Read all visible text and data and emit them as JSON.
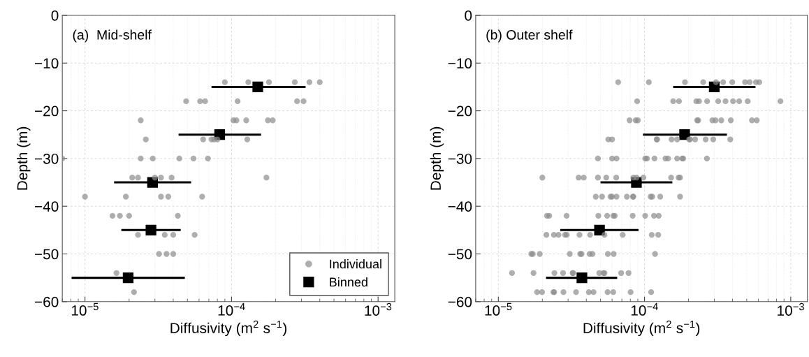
{
  "chart_data": [
    {
      "type": "scatter",
      "xlabel": "Diffusivity (m$^{2}$ s$^{−1}$)",
      "ylabel": "Depth (m)",
      "annotations": [
        "(a)  Mid-shelf"
      ],
      "log": "x",
      "grid": true,
      "legend": "bottom right",
      "marker": "circle",
      "xlim": [
        7e-06,
        0.0013
      ],
      "ylim": [
        -60,
        0
      ],
      "xticks": [
        {
          "value": 1e-05,
          "label": "10$^{−5}$"
        },
        {
          "value": 0.0001,
          "label": "10$^{−4}$"
        },
        {
          "value": 0.001,
          "label": "10$^{−3}$"
        }
      ],
      "yticks": [
        {
          "value": -60,
          "label": "−60"
        },
        {
          "value": -50,
          "label": "−50"
        },
        {
          "value": -40,
          "label": "−40"
        },
        {
          "value": -30,
          "label": "−30"
        },
        {
          "value": -20,
          "label": "−20"
        },
        {
          "value": -10,
          "label": "−10"
        },
        0
      ],
      "series": [
        {
          "name": "Individual",
          "color": "#8c8c8c",
          "x": [
            9e-05,
            0.00013,
            0.00018,
            0.00027,
            0.00034,
            0.0004,
            4.9e-05,
            6.1e-05,
            6.6e-05,
            0.00011,
            0.00028,
            0.00031,
            2.4e-05,
            0.000103,
            0.000108,
            0.000126,
            0.000177,
            0.000191,
            2.6e-05,
            6.4e-05,
            7.3e-05,
            7.6e-05,
            8e-05,
            0.000128,
            7e-06,
            2.4e-05,
            2.9e-05,
            4.4e-05,
            5.5e-05,
            6.9e-05,
            2.1e-05,
            2.3e-05,
            3e-05,
            3.3e-05,
            3.9e-05,
            0.000173,
            1e-05,
            1.9e-05,
            3.3e-05,
            3.7e-05,
            6.3e-05,
            1.54e-05,
            1.73e-05,
            2e-05,
            4.3e-05,
            2.3e-05,
            3.5e-05,
            4e-05,
            5.6e-05,
            3.2e-05,
            3.6e-05,
            4e-05,
            1.64e-05,
            2.16e-05
          ],
          "values": [
            -14,
            -14,
            -14,
            -14,
            -14,
            -14,
            -18,
            -18,
            -18,
            -18,
            -18,
            -18,
            -22,
            -22,
            -22,
            -22,
            -22,
            -22,
            -26,
            -26,
            -26,
            -26,
            -26,
            -26,
            -30,
            -30,
            -30,
            -30,
            -30,
            -30,
            -34,
            -34,
            -34,
            -34,
            -34,
            -34,
            -38,
            -38,
            -38,
            -38,
            -38,
            -42,
            -42,
            -42,
            -42,
            -46,
            -46,
            -46,
            -46,
            -50,
            -50,
            -50,
            -54,
            -58
          ]
        },
        {
          "name": "Binned",
          "color": "#000000",
          "marker": "square",
          "x": [
            0.000151,
            8.3e-05,
            2.89e-05,
            2.82e-05,
            1.97e-05
          ],
          "values": [
            -15,
            -25,
            -35,
            -45,
            -55
          ],
          "xerrors": [
            [
              7.3e-05,
              0.00032
            ],
            [
              4.35e-05,
              0.000159
            ],
            [
              1.58e-05,
              5.3e-05
            ],
            [
              1.77e-05,
              4.5e-05
            ],
            [
              8.1e-06,
              4.8e-05
            ]
          ]
        }
      ]
    },
    {
      "type": "scatter",
      "xlabel": "Diffusivity (m$^{2}$ s$^{−1}$)",
      "ylabel": "Depth (m)",
      "annotations": [
        "(b) Outer shelf"
      ],
      "log": "x",
      "grid": true,
      "marker": "circle",
      "xlim": [
        7e-06,
        0.0013
      ],
      "ylim": [
        -60,
        0
      ],
      "xticks": [
        {
          "value": 1e-05,
          "label": "10$^{−5}$"
        },
        {
          "value": 0.0001,
          "label": "10$^{−4}$"
        },
        {
          "value": 0.001,
          "label": "10$^{−3}$"
        }
      ],
      "yticks": [
        {
          "value": -60,
          "label": "−60"
        },
        {
          "value": -50,
          "label": "−50"
        },
        {
          "value": -40,
          "label": "−40"
        },
        {
          "value": -30,
          "label": "−30"
        },
        {
          "value": -20,
          "label": "−20"
        },
        {
          "value": -10,
          "label": "−10"
        },
        0
      ],
      "series": [
        {
          "color": "#8c8c8c",
          "x": [
            6.6e-05,
            0.000107,
            0.000189,
            0.000252,
            0.000308,
            0.000345,
            0.000398,
            0.000487,
            0.000524,
            0.000578,
            0.00061,
            8.9e-05,
            0.000157,
            0.000172,
            0.000226,
            0.000236,
            0.000268,
            0.000319,
            0.000358,
            0.000403,
            0.000444,
            0.000508,
            0.00085,
            7.9e-05,
            8.7e-05,
            9e-05,
            0.000229,
            0.000233,
            0.000291,
            0.000306,
            0.000335,
            0.000389,
            0.000543,
            0.000586,
            5.65e-05,
            6e-05,
            0.000121,
            0.000122,
            0.000153,
            0.000167,
            0.000202,
            0.000205,
            0.000222,
            0.000262,
            0.000295,
            0.000386,
            4.8e-05,
            6e-05,
            6.43e-05,
            0.000101,
            0.000104,
            0.000117,
            0.000139,
            0.000145,
            0.000167,
            0.000181,
            0.000184,
            0.000267,
            2e-05,
            3.54e-05,
            3.84e-05,
            4.8e-05,
            5.47e-05,
            6.4e-05,
            8.39e-05,
            8.83e-05,
            9.82e-05,
            0.000152,
            0.000171,
            0.000175,
            4.64e-05,
            5.12e-05,
            5.85e-05,
            6e-05,
            6.43e-05,
            7.57e-05,
            8.33e-05,
            8.39e-05,
            0.00011,
            0.000113,
            0.000128,
            0.000175,
            2.15e-05,
            2.23e-05,
            2.93e-05,
            4.83e-05,
            5.55e-05,
            6.11e-05,
            6.26e-05,
            8.3e-05,
            0.000101,
            0.000116,
            0.000125,
            2.13e-05,
            2.4e-05,
            2.58e-05,
            2.86e-05,
            2.94e-05,
            3.59e-05,
            4.24e-05,
            5.32e-05,
            7.09e-05,
            0.000112,
            0.000124,
            1.68e-05,
            1.72e-05,
            1.92e-05,
            3.08e-05,
            3.63e-05,
            3.71e-05,
            4.21e-05,
            4.4e-05,
            5.61e-05,
            6.15e-05,
            0.000118,
            1.24e-05,
            1.74e-05,
            2.42e-05,
            2.77e-05,
            3.22e-05,
            3.25e-05,
            4.9e-05,
            5.24e-05,
            5.32e-05,
            6.92e-05,
            7.77e-05,
            1.84e-05,
            1.99e-05,
            2.38e-05,
            2.41e-05,
            2.79e-05,
            3.4e-05,
            4.16e-05,
            4.48e-05,
            5.59e-05,
            6.11e-05,
            8.03e-05,
            0.000111
          ],
          "values": [
            -14,
            -14,
            -14,
            -14,
            -14,
            -14,
            -14,
            -14,
            -14,
            -14,
            -14,
            -18,
            -18,
            -18,
            -18,
            -18,
            -18,
            -18,
            -18,
            -18,
            -18,
            -18,
            -18,
            -22,
            -22,
            -22,
            -22,
            -22,
            -22,
            -22,
            -22,
            -22,
            -22,
            -22,
            -26,
            -26,
            -26,
            -26,
            -26,
            -26,
            -26,
            -26,
            -26,
            -26,
            -26,
            -26,
            -30,
            -30,
            -30,
            -30,
            -30,
            -30,
            -30,
            -30,
            -30,
            -30,
            -30,
            -30,
            -34,
            -34,
            -34,
            -34,
            -34,
            -34,
            -34,
            -34,
            -34,
            -34,
            -34,
            -34,
            -38,
            -38,
            -38,
            -38,
            -38,
            -38,
            -38,
            -38,
            -38,
            -38,
            -38,
            -38,
            -42,
            -42,
            -42,
            -42,
            -42,
            -42,
            -42,
            -42,
            -42,
            -42,
            -42,
            -46,
            -46,
            -46,
            -46,
            -46,
            -46,
            -46,
            -46,
            -46,
            -46,
            -46,
            -50,
            -50,
            -50,
            -50,
            -50,
            -50,
            -50,
            -50,
            -50,
            -50,
            -50,
            -54,
            -54,
            -54,
            -54,
            -54,
            -54,
            -54,
            -54,
            -54,
            -54,
            -54,
            -58,
            -58,
            -58,
            -58,
            -58,
            -58,
            -58,
            -58,
            -58,
            -58,
            -58,
            -58
          ]
        },
        {
          "color": "#000000",
          "marker": "square",
          "x": [
            0.0003,
            0.000188,
            8.8e-05,
            4.92e-05,
            3.73e-05
          ],
          "values": [
            -15,
            -25,
            -35,
            -45,
            -55
          ],
          "xerrors": [
            [
              0.000157,
              0.000574
            ],
            [
              9.75e-05,
              0.000366
            ],
            [
              5e-05,
              0.000155
            ],
            [
              2.65e-05,
              9.1e-05
            ],
            [
              2.12e-05,
              6.5e-05
            ]
          ]
        }
      ]
    }
  ]
}
